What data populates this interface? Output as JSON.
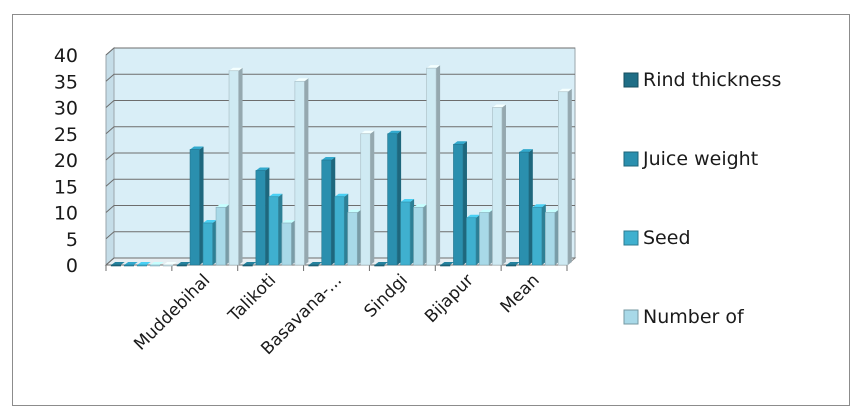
{
  "chart_data": {
    "type": "bar",
    "style": "3d-clustered-column",
    "categories": [
      "",
      "Muddebihal",
      "Talikoti",
      "Basavana-...",
      "Sindgi",
      "Bijapur",
      "Mean"
    ],
    "series": [
      {
        "name": "Rind thickness",
        "color": "#1f6e86",
        "values": [
          0,
          0,
          0,
          0,
          0,
          0,
          0
        ]
      },
      {
        "name": "Juice weight",
        "color": "#2a8fae",
        "values": [
          0,
          22,
          18,
          20,
          25,
          23,
          21.5
        ]
      },
      {
        "name": "Seed",
        "color": "#3fb0cf",
        "values": [
          0,
          8,
          13,
          13,
          12,
          9,
          11
        ]
      },
      {
        "name": "Number of",
        "color": "#a8d9e8",
        "values": [
          0,
          11,
          8,
          10,
          11,
          10,
          10
        ]
      },
      {
        "name": "",
        "color": "#cfeaf3",
        "values": [
          0,
          37,
          35,
          25,
          37.5,
          30,
          33
        ]
      }
    ],
    "yticks": [
      0,
      5,
      10,
      15,
      20,
      25,
      30,
      35,
      40
    ],
    "ylim": [
      0,
      40
    ],
    "grid": true,
    "legend_position": "right"
  }
}
